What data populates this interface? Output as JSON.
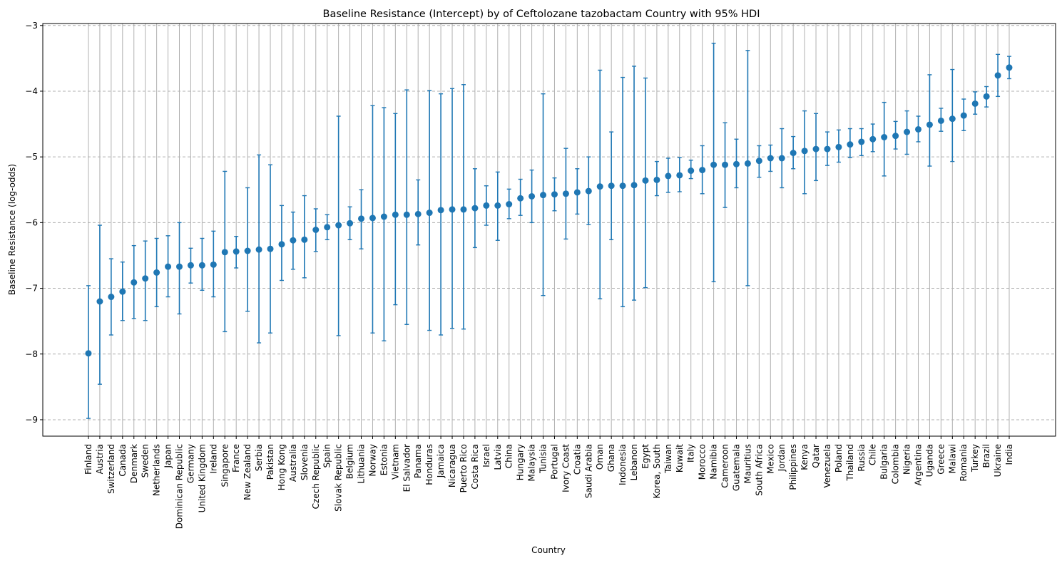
{
  "chart_data": {
    "type": "scatter",
    "title": "Baseline Resistance (Intercept) by of Ceftolozane tazobactam Country with 95% HDI",
    "xlabel": "Country",
    "ylabel": "Baseline Resistance (log-odds)",
    "ylim": [
      -9.25,
      -2.97
    ],
    "yticks": [
      -9,
      -8,
      -7,
      -6,
      -5,
      -4,
      -3
    ],
    "grid": {
      "x": "solid",
      "y": "dashed"
    },
    "marker_color": "#1f77b4",
    "categories": [
      "Finland",
      "Austria",
      "Switzerland",
      "Canada",
      "Denmark",
      "Sweden",
      "Netherlands",
      "Japan",
      "Dominican Republic",
      "Germany",
      "United Kingdom",
      "Ireland",
      "Singapore",
      "France",
      "New Zealand",
      "Serbia",
      "Pakistan",
      "Hong Kong",
      "Australia",
      "Slovenia",
      "Czech Republic",
      "Spain",
      "Slovak Republic",
      "Belgium",
      "Lithuania",
      "Norway",
      "Estonia",
      "Vietnam",
      "El Salvador",
      "Panama",
      "Honduras",
      "Jamaica",
      "Nicaragua",
      "Puerto Rico",
      "Costa Rica",
      "Israel",
      "Latvia",
      "China",
      "Hungary",
      "Malaysia",
      "Tunisia",
      "Portugal",
      "Ivory Coast",
      "Croatia",
      "Saudi Arabia",
      "Oman",
      "Ghana",
      "Indonesia",
      "Lebanon",
      "Egypt",
      "Korea, South",
      "Taiwan",
      "Kuwait",
      "Italy",
      "Morocco",
      "Namibia",
      "Cameroon",
      "Guatemala",
      "Mauritius",
      "South Africa",
      "Mexico",
      "Jordan",
      "Philippines",
      "Kenya",
      "Qatar",
      "Venezuela",
      "Poland",
      "Thailand",
      "Russia",
      "Chile",
      "Bulgaria",
      "Colombia",
      "Nigeria",
      "Argentina",
      "Uganda",
      "Greece",
      "Malawi",
      "Romania",
      "Turkey",
      "Brazil",
      "Ukraine",
      "India"
    ],
    "series": [
      {
        "values": [
          -7.99,
          -7.2,
          -7.13,
          -7.05,
          -6.91,
          -6.85,
          -6.76,
          -6.67,
          -6.67,
          -6.65,
          -6.65,
          -6.64,
          -6.45,
          -6.44,
          -6.43,
          -6.41,
          -6.4,
          -6.33,
          -6.27,
          -6.26,
          -6.11,
          -6.07,
          -6.04,
          -6.01,
          -5.94,
          -5.93,
          -5.91,
          -5.88,
          -5.88,
          -5.87,
          -5.85,
          -5.81,
          -5.8,
          -5.8,
          -5.78,
          -5.74,
          -5.74,
          -5.72,
          -5.63,
          -5.6,
          -5.58,
          -5.57,
          -5.56,
          -5.54,
          -5.52,
          -5.45,
          -5.44,
          -5.44,
          -5.43,
          -5.36,
          -5.35,
          -5.29,
          -5.28,
          -5.21,
          -5.2,
          -5.12,
          -5.12,
          -5.11,
          -5.1,
          -5.06,
          -5.02,
          -5.02,
          -4.94,
          -4.91,
          -4.88,
          -4.88,
          -4.85,
          -4.81,
          -4.77,
          -4.73,
          -4.7,
          -4.68,
          -4.62,
          -4.58,
          -4.51,
          -4.45,
          -4.42,
          -4.37,
          -4.19,
          -4.08,
          -3.76,
          -3.64
        ],
        "lower": [
          -8.98,
          -8.46,
          -7.71,
          -7.49,
          -7.46,
          -7.49,
          -7.28,
          -7.13,
          -7.39,
          -6.92,
          -7.03,
          -7.13,
          -7.66,
          -6.69,
          -7.35,
          -7.83,
          -7.68,
          -6.88,
          -6.71,
          -6.84,
          -6.44,
          -6.26,
          -7.72,
          -6.26,
          -6.4,
          -7.68,
          -7.8,
          -7.25,
          -7.55,
          -6.34,
          -7.64,
          -7.71,
          -7.61,
          -7.62,
          -6.38,
          -6.04,
          -6.27,
          -5.94,
          -5.89,
          -6.0,
          -7.11,
          -5.82,
          -6.25,
          -5.87,
          -6.03,
          -7.16,
          -6.26,
          -7.28,
          -7.18,
          -6.99,
          -5.59,
          -5.54,
          -5.53,
          -5.33,
          -5.56,
          -6.9,
          -5.77,
          -5.47,
          -6.96,
          -5.31,
          -5.22,
          -5.47,
          -5.18,
          -5.56,
          -5.36,
          -5.13,
          -5.08,
          -5.01,
          -4.98,
          -4.92,
          -5.29,
          -4.88,
          -4.96,
          -4.77,
          -5.14,
          -4.61,
          -5.07,
          -4.6,
          -4.35,
          -4.24,
          -4.08,
          -3.81
        ],
        "upper": [
          -6.96,
          -6.04,
          -6.55,
          -6.6,
          -6.35,
          -6.28,
          -6.24,
          -6.2,
          -6.0,
          -6.39,
          -6.24,
          -6.13,
          -5.22,
          -6.21,
          -5.47,
          -4.97,
          -5.12,
          -5.74,
          -5.84,
          -5.59,
          -5.79,
          -5.88,
          -4.38,
          -5.76,
          -5.5,
          -4.22,
          -4.25,
          -4.34,
          -3.98,
          -5.35,
          -3.99,
          -4.04,
          -3.96,
          -3.9,
          -5.18,
          -5.44,
          -5.23,
          -5.49,
          -5.34,
          -5.2,
          -4.04,
          -5.32,
          -4.87,
          -5.18,
          -5.0,
          -3.68,
          -4.62,
          -3.79,
          -3.62,
          -3.8,
          -5.07,
          -5.02,
          -5.01,
          -5.05,
          -4.83,
          -3.27,
          -4.48,
          -4.73,
          -3.38,
          -4.83,
          -4.82,
          -4.57,
          -4.69,
          -4.3,
          -4.34,
          -4.62,
          -4.59,
          -4.57,
          -4.57,
          -4.5,
          -4.17,
          -4.46,
          -4.3,
          -4.38,
          -3.75,
          -4.26,
          -3.67,
          -4.12,
          -4.01,
          -3.93,
          -3.44,
          -3.47
        ]
      }
    ]
  }
}
